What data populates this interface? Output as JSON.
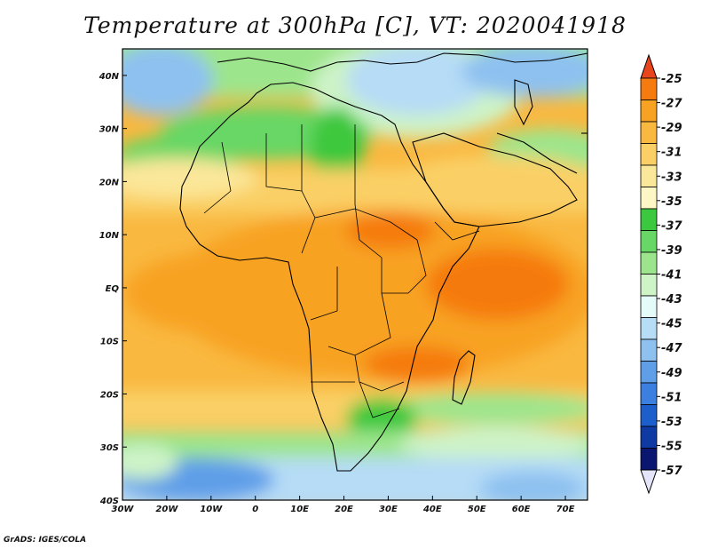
{
  "title": "Temperature at 300hPa [C], VT: 2020041918",
  "credit": "GrADS: IGES/COLA",
  "map": {
    "lon_range": [
      -30,
      75
    ],
    "lat_range": [
      -40,
      45
    ],
    "lon_ticks": [
      {
        "value": -30,
        "label": "30W"
      },
      {
        "value": -20,
        "label": "20W"
      },
      {
        "value": -10,
        "label": "10W"
      },
      {
        "value": 0,
        "label": "0"
      },
      {
        "value": 10,
        "label": "10E"
      },
      {
        "value": 20,
        "label": "20E"
      },
      {
        "value": 30,
        "label": "30E"
      },
      {
        "value": 40,
        "label": "40E"
      },
      {
        "value": 50,
        "label": "50E"
      },
      {
        "value": 60,
        "label": "60E"
      },
      {
        "value": 70,
        "label": "70E"
      }
    ],
    "lat_ticks": [
      {
        "value": 40,
        "label": "40N"
      },
      {
        "value": 30,
        "label": "30N"
      },
      {
        "value": 20,
        "label": "20N"
      },
      {
        "value": 10,
        "label": "10N"
      },
      {
        "value": 0,
        "label": "EQ"
      },
      {
        "value": -10,
        "label": "10S"
      },
      {
        "value": -20,
        "label": "20S"
      },
      {
        "value": -30,
        "label": "30S"
      },
      {
        "value": -40,
        "label": "40S"
      }
    ]
  },
  "colorbar": {
    "labels": [
      "-25",
      "-27",
      "-29",
      "-31",
      "-33",
      "-35",
      "-37",
      "-39",
      "-41",
      "-43",
      "-45",
      "-47",
      "-49",
      "-51",
      "-53",
      "-55",
      "-57"
    ],
    "colors": [
      "#e8451c",
      "#f57a10",
      "#f8a223",
      "#f9b840",
      "#fad066",
      "#fbe79a",
      "#fcf7c5",
      "#3cc83e",
      "#67d765",
      "#9de58c",
      "#cdf3c7",
      "#e4fbfa",
      "#b6dcf6",
      "#8ec1f0",
      "#5e9fe8",
      "#3b7fe0",
      "#1b5ecc",
      "#0f3aa3",
      "#0a1670",
      "#e4e4fa"
    ]
  }
}
